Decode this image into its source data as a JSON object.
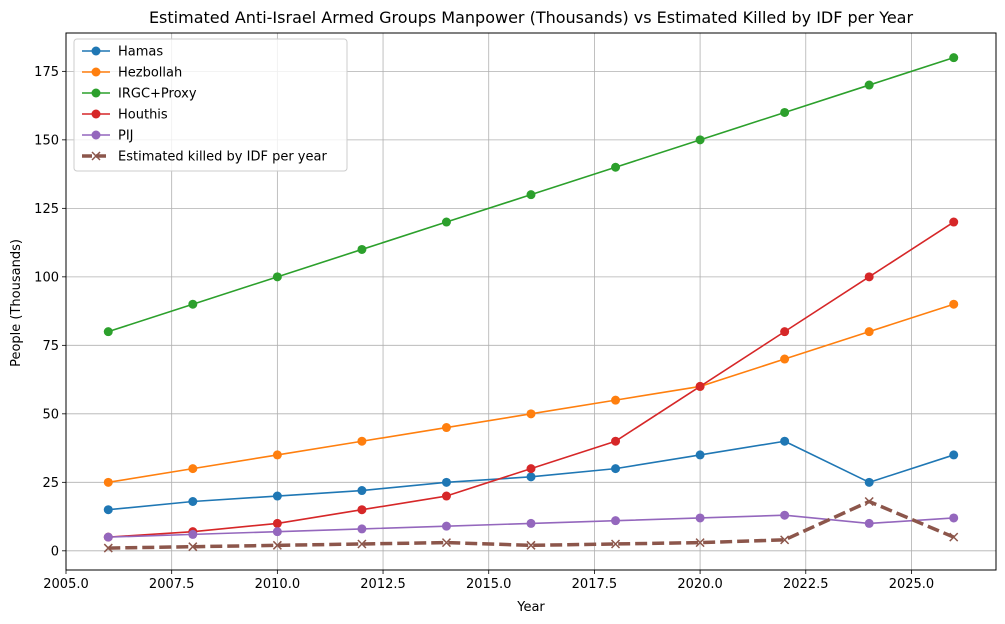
{
  "chart_data": {
    "type": "line",
    "title": "Estimated Anti-Israel Armed Groups Manpower (Thousands) vs Estimated Killed by IDF per Year",
    "xlabel": "Year",
    "ylabel": "People (Thousands)",
    "xlim": [
      2005,
      2027
    ],
    "ylim": [
      -7,
      189
    ],
    "xticks": [
      2005.0,
      2007.5,
      2010.0,
      2012.5,
      2015.0,
      2017.5,
      2020.0,
      2022.5,
      2025.0
    ],
    "xtick_labels": [
      "2005.0",
      "2007.5",
      "2010.0",
      "2012.5",
      "2015.0",
      "2017.5",
      "2020.0",
      "2022.5",
      "2025.0"
    ],
    "yticks": [
      0,
      25,
      50,
      75,
      100,
      125,
      150,
      175
    ],
    "ytick_labels": [
      "0",
      "25",
      "50",
      "75",
      "100",
      "125",
      "150",
      "175"
    ],
    "grid": true,
    "legend_position": "top-left",
    "x": [
      2006,
      2008,
      2010,
      2012,
      2014,
      2016,
      2018,
      2020,
      2022,
      2024,
      2026
    ],
    "series": [
      {
        "name": "Hamas",
        "color": "#1f77b4",
        "marker": "circle",
        "style": "solid",
        "values": [
          15,
          18,
          20,
          22,
          25,
          27,
          30,
          35,
          40,
          25,
          35
        ]
      },
      {
        "name": "Hezbollah",
        "color": "#ff7f0e",
        "marker": "circle",
        "style": "solid",
        "values": [
          25,
          30,
          35,
          40,
          45,
          50,
          55,
          60,
          70,
          80,
          90
        ]
      },
      {
        "name": "IRGC+Proxy",
        "color": "#2ca02c",
        "marker": "circle",
        "style": "solid",
        "values": [
          80,
          90,
          100,
          110,
          120,
          130,
          140,
          150,
          160,
          170,
          180
        ]
      },
      {
        "name": "Houthis",
        "color": "#d62728",
        "marker": "circle",
        "style": "solid",
        "values": [
          5,
          7,
          10,
          15,
          20,
          30,
          40,
          60,
          80,
          100,
          120
        ]
      },
      {
        "name": "PIJ",
        "color": "#9467bd",
        "marker": "circle",
        "style": "solid",
        "values": [
          5,
          6,
          7,
          8,
          9,
          10,
          11,
          12,
          13,
          10,
          12
        ]
      },
      {
        "name": "Estimated killed by IDF per year",
        "color": "#8c564b",
        "marker": "x",
        "style": "dashed",
        "values": [
          1,
          1.5,
          2,
          2.5,
          3,
          2,
          2.5,
          3,
          4,
          18,
          5
        ]
      }
    ]
  }
}
